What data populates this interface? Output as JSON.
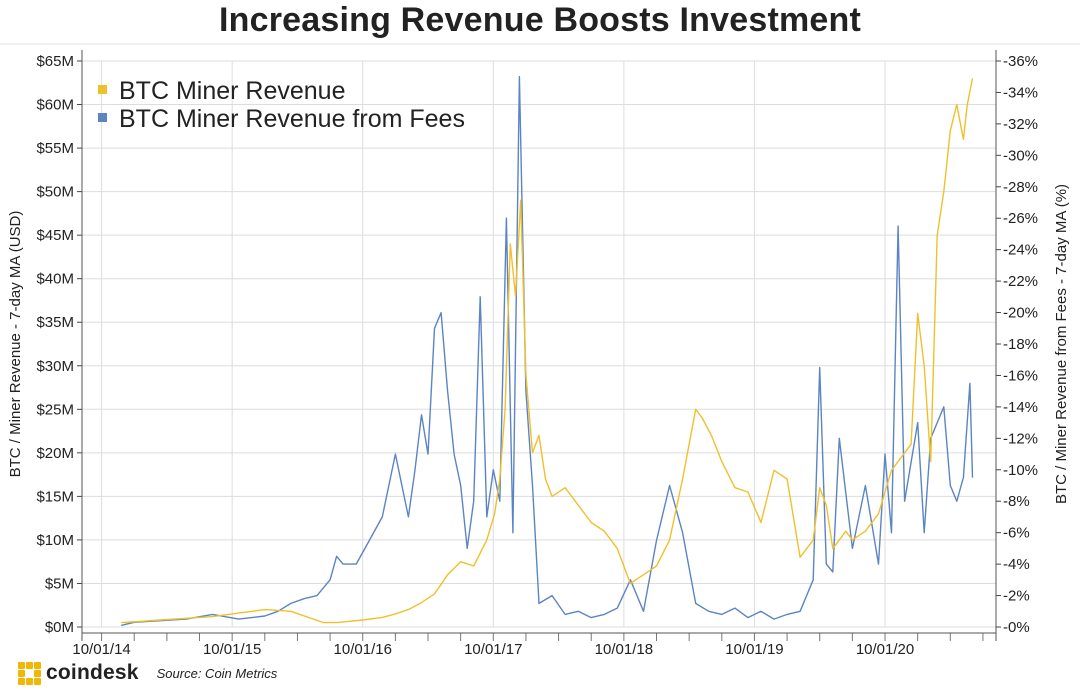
{
  "title": "Increasing Revenue Boosts Investment",
  "source": "Source: Coin Metrics",
  "brand": "coindesk",
  "colors": {
    "revenue": "#f0c02c",
    "fees": "#5b84c4",
    "grid": "#dddddd",
    "logo": "#f2b705"
  },
  "chart_data": {
    "type": "line",
    "title": "Increasing Revenue Boosts Investment",
    "ylabel_left": "BTC / Miner Revenue - 7-day MA (USD)",
    "ylabel_right": "BTC / Miner Revenue from Fees - 7-day MA (%)",
    "ylim_left": [
      0,
      65
    ],
    "ylim_right": [
      0,
      36
    ],
    "left_ticks": [
      0,
      5,
      10,
      15,
      20,
      25,
      30,
      35,
      40,
      45,
      50,
      55,
      60,
      65
    ],
    "left_tick_labels": [
      "$0M",
      "$5M",
      "$10M",
      "$15M",
      "$20M",
      "$25M",
      "$30M",
      "$35M",
      "$40M",
      "$45M",
      "$50M",
      "$55M",
      "$60M",
      "$65M"
    ],
    "right_ticks": [
      0,
      2,
      4,
      6,
      8,
      10,
      12,
      14,
      16,
      18,
      20,
      22,
      24,
      26,
      28,
      30,
      32,
      34,
      36
    ],
    "right_tick_labels": [
      "0%",
      "2%",
      "4%",
      "6%",
      "8%",
      "10%",
      "12%",
      "14%",
      "16%",
      "18%",
      "20%",
      "22%",
      "24%",
      "26%",
      "28%",
      "30%",
      "32%",
      "34%",
      "36%"
    ],
    "xlim": [
      2014.6,
      2021.6
    ],
    "x_ticks": [
      2014.75,
      2015.75,
      2016.75,
      2017.75,
      2018.75,
      2019.75,
      2020.75
    ],
    "x_tick_labels": [
      "10/01/14",
      "10/01/15",
      "10/01/16",
      "10/01/17",
      "10/01/18",
      "10/01/19",
      "10/01/20"
    ],
    "legend": {
      "placement": "top-left",
      "entries": [
        "BTC Miner Revenue",
        "BTC Miner Revenue from Fees"
      ]
    },
    "series": [
      {
        "name": "BTC Miner Revenue",
        "axis": "left",
        "x": [
          2014.9,
          2015.0,
          2015.2,
          2015.4,
          2015.6,
          2015.8,
          2016.0,
          2016.2,
          2016.45,
          2016.55,
          2016.75,
          2016.9,
          2017.0,
          2017.1,
          2017.2,
          2017.3,
          2017.4,
          2017.5,
          2017.6,
          2017.7,
          2017.76,
          2017.8,
          2017.84,
          2017.88,
          2017.92,
          2017.96,
          2018.0,
          2018.05,
          2018.1,
          2018.15,
          2018.2,
          2018.3,
          2018.4,
          2018.5,
          2018.6,
          2018.7,
          2018.8,
          2018.85,
          2018.9,
          2019.0,
          2019.1,
          2019.2,
          2019.3,
          2019.35,
          2019.42,
          2019.5,
          2019.6,
          2019.7,
          2019.8,
          2019.9,
          2020.0,
          2020.1,
          2020.2,
          2020.25,
          2020.3,
          2020.35,
          2020.4,
          2020.45,
          2020.5,
          2020.6,
          2020.7,
          2020.8,
          2020.9,
          2020.95,
          2021.0,
          2021.05,
          2021.1,
          2021.15,
          2021.2,
          2021.25,
          2021.3,
          2021.35,
          2021.38,
          2021.42
        ],
        "values": [
          0.5,
          0.6,
          0.8,
          1.0,
          1.2,
          1.6,
          2.0,
          1.8,
          0.5,
          0.5,
          0.8,
          1.1,
          1.5,
          2.0,
          2.8,
          3.8,
          6.0,
          7.5,
          7.0,
          10.0,
          13.0,
          17.0,
          25.0,
          44.0,
          38.0,
          49.0,
          29.0,
          20.0,
          22.0,
          17.0,
          15.0,
          16.0,
          14.0,
          12.0,
          11.0,
          9.0,
          5.0,
          5.5,
          6.0,
          7.0,
          10.0,
          17.0,
          25.0,
          24.0,
          22.0,
          19.0,
          16.0,
          15.5,
          12.0,
          18.0,
          17.0,
          8.0,
          10.0,
          16.0,
          14.0,
          9.0,
          10.0,
          11.0,
          10.0,
          11.0,
          13.0,
          18.0,
          20.0,
          21.0,
          36.0,
          30.0,
          19.0,
          45.0,
          50.0,
          57.0,
          60.0,
          56.0,
          60.0,
          63.0
        ]
      },
      {
        "name": "BTC Miner Revenue from Fees",
        "axis": "right",
        "x": [
          2014.9,
          2015.0,
          2015.2,
          2015.4,
          2015.6,
          2015.8,
          2016.0,
          2016.1,
          2016.2,
          2016.3,
          2016.4,
          2016.5,
          2016.55,
          2016.6,
          2016.7,
          2016.8,
          2016.9,
          2017.0,
          2017.1,
          2017.15,
          2017.2,
          2017.25,
          2017.3,
          2017.35,
          2017.4,
          2017.45,
          2017.5,
          2017.55,
          2017.6,
          2017.65,
          2017.7,
          2017.75,
          2017.8,
          2017.85,
          2017.9,
          2017.95,
          2018.0,
          2018.05,
          2018.1,
          2018.2,
          2018.3,
          2018.4,
          2018.5,
          2018.6,
          2018.7,
          2018.8,
          2018.9,
          2019.0,
          2019.1,
          2019.2,
          2019.3,
          2019.4,
          2019.5,
          2019.6,
          2019.7,
          2019.8,
          2019.9,
          2020.0,
          2020.1,
          2020.2,
          2020.25,
          2020.3,
          2020.35,
          2020.4,
          2020.5,
          2020.6,
          2020.7,
          2020.75,
          2020.8,
          2020.85,
          2020.9,
          2021.0,
          2021.05,
          2021.1,
          2021.2,
          2021.25,
          2021.3,
          2021.35,
          2021.4,
          2021.42
        ],
        "values": [
          0.1,
          0.3,
          0.4,
          0.5,
          0.8,
          0.5,
          0.7,
          1.0,
          1.5,
          1.8,
          2.0,
          3.0,
          4.5,
          4.0,
          4.0,
          5.5,
          7.0,
          11.0,
          7.0,
          10.0,
          13.5,
          11.0,
          19.0,
          20.0,
          15.0,
          11.0,
          9.0,
          5.0,
          8.0,
          21.0,
          7.0,
          10.0,
          8.0,
          26.0,
          6.0,
          35.0,
          15.0,
          9.0,
          1.5,
          2.0,
          0.8,
          1.0,
          0.6,
          0.8,
          1.2,
          3.0,
          1.0,
          5.5,
          9.0,
          6.0,
          1.5,
          1.0,
          0.8,
          1.2,
          0.6,
          1.0,
          0.5,
          0.8,
          1.0,
          3.0,
          16.5,
          4.0,
          3.5,
          12.0,
          5.0,
          9.0,
          4.0,
          11.0,
          6.0,
          25.5,
          8.0,
          13.0,
          6.0,
          12.0,
          14.0,
          9.0,
          8.0,
          9.5,
          15.5,
          9.5
        ]
      }
    ]
  }
}
